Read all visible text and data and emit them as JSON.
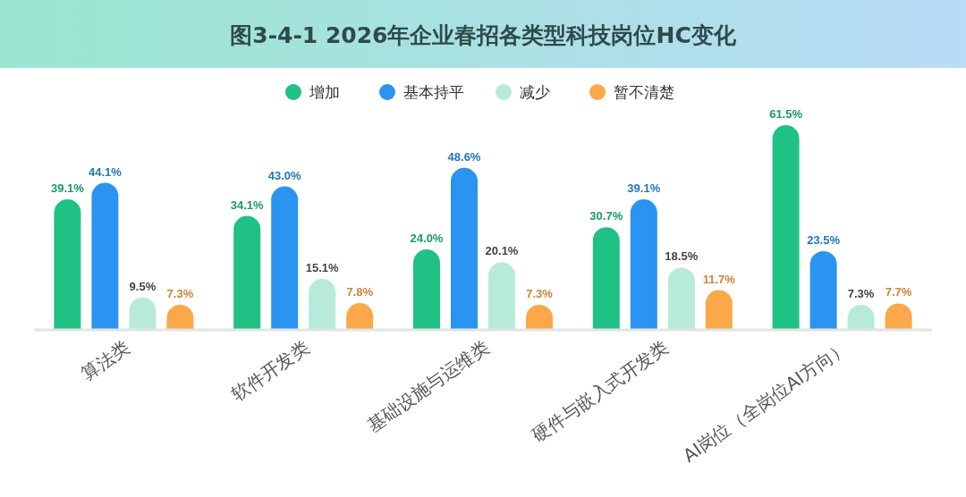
{
  "chart_data": {
    "type": "bar",
    "title": "图3-4-1 2026年企业春招各类型科技岗位HC变化",
    "categories": [
      "算法类",
      "软件开发类",
      "基础设施与运维类",
      "硬件与嵌入式开发类",
      "AI岗位（全岗位AI方向）"
    ],
    "series": [
      {
        "name": "增加",
        "color": "#1fc184",
        "values": [
          39.1,
          34.1,
          24.0,
          30.7,
          61.5
        ],
        "value_labels": [
          "39.1%",
          "34.1%",
          "24.0%",
          "30.7%",
          "61.5%"
        ]
      },
      {
        "name": "基本持平",
        "color": "#2b93f0",
        "values": [
          44.1,
          43.0,
          48.6,
          39.1,
          23.5
        ],
        "value_labels": [
          "44.1%",
          "43.0%",
          "48.6%",
          "39.1%",
          "23.5%"
        ]
      },
      {
        "name": "减少",
        "color": "#b8eadc",
        "values": [
          9.5,
          15.1,
          20.1,
          18.5,
          7.3
        ],
        "value_labels": [
          "9.5%",
          "15.1%",
          "20.1%",
          "18.5%",
          "7.3%"
        ]
      },
      {
        "name": "暂不清楚",
        "color": "#fba84a",
        "values": [
          7.3,
          7.8,
          7.3,
          11.7,
          7.7
        ],
        "value_labels": [
          "7.3%",
          "7.8%",
          "7.3%",
          "11.7%",
          "7.7%"
        ]
      }
    ],
    "legend": "top"
  }
}
